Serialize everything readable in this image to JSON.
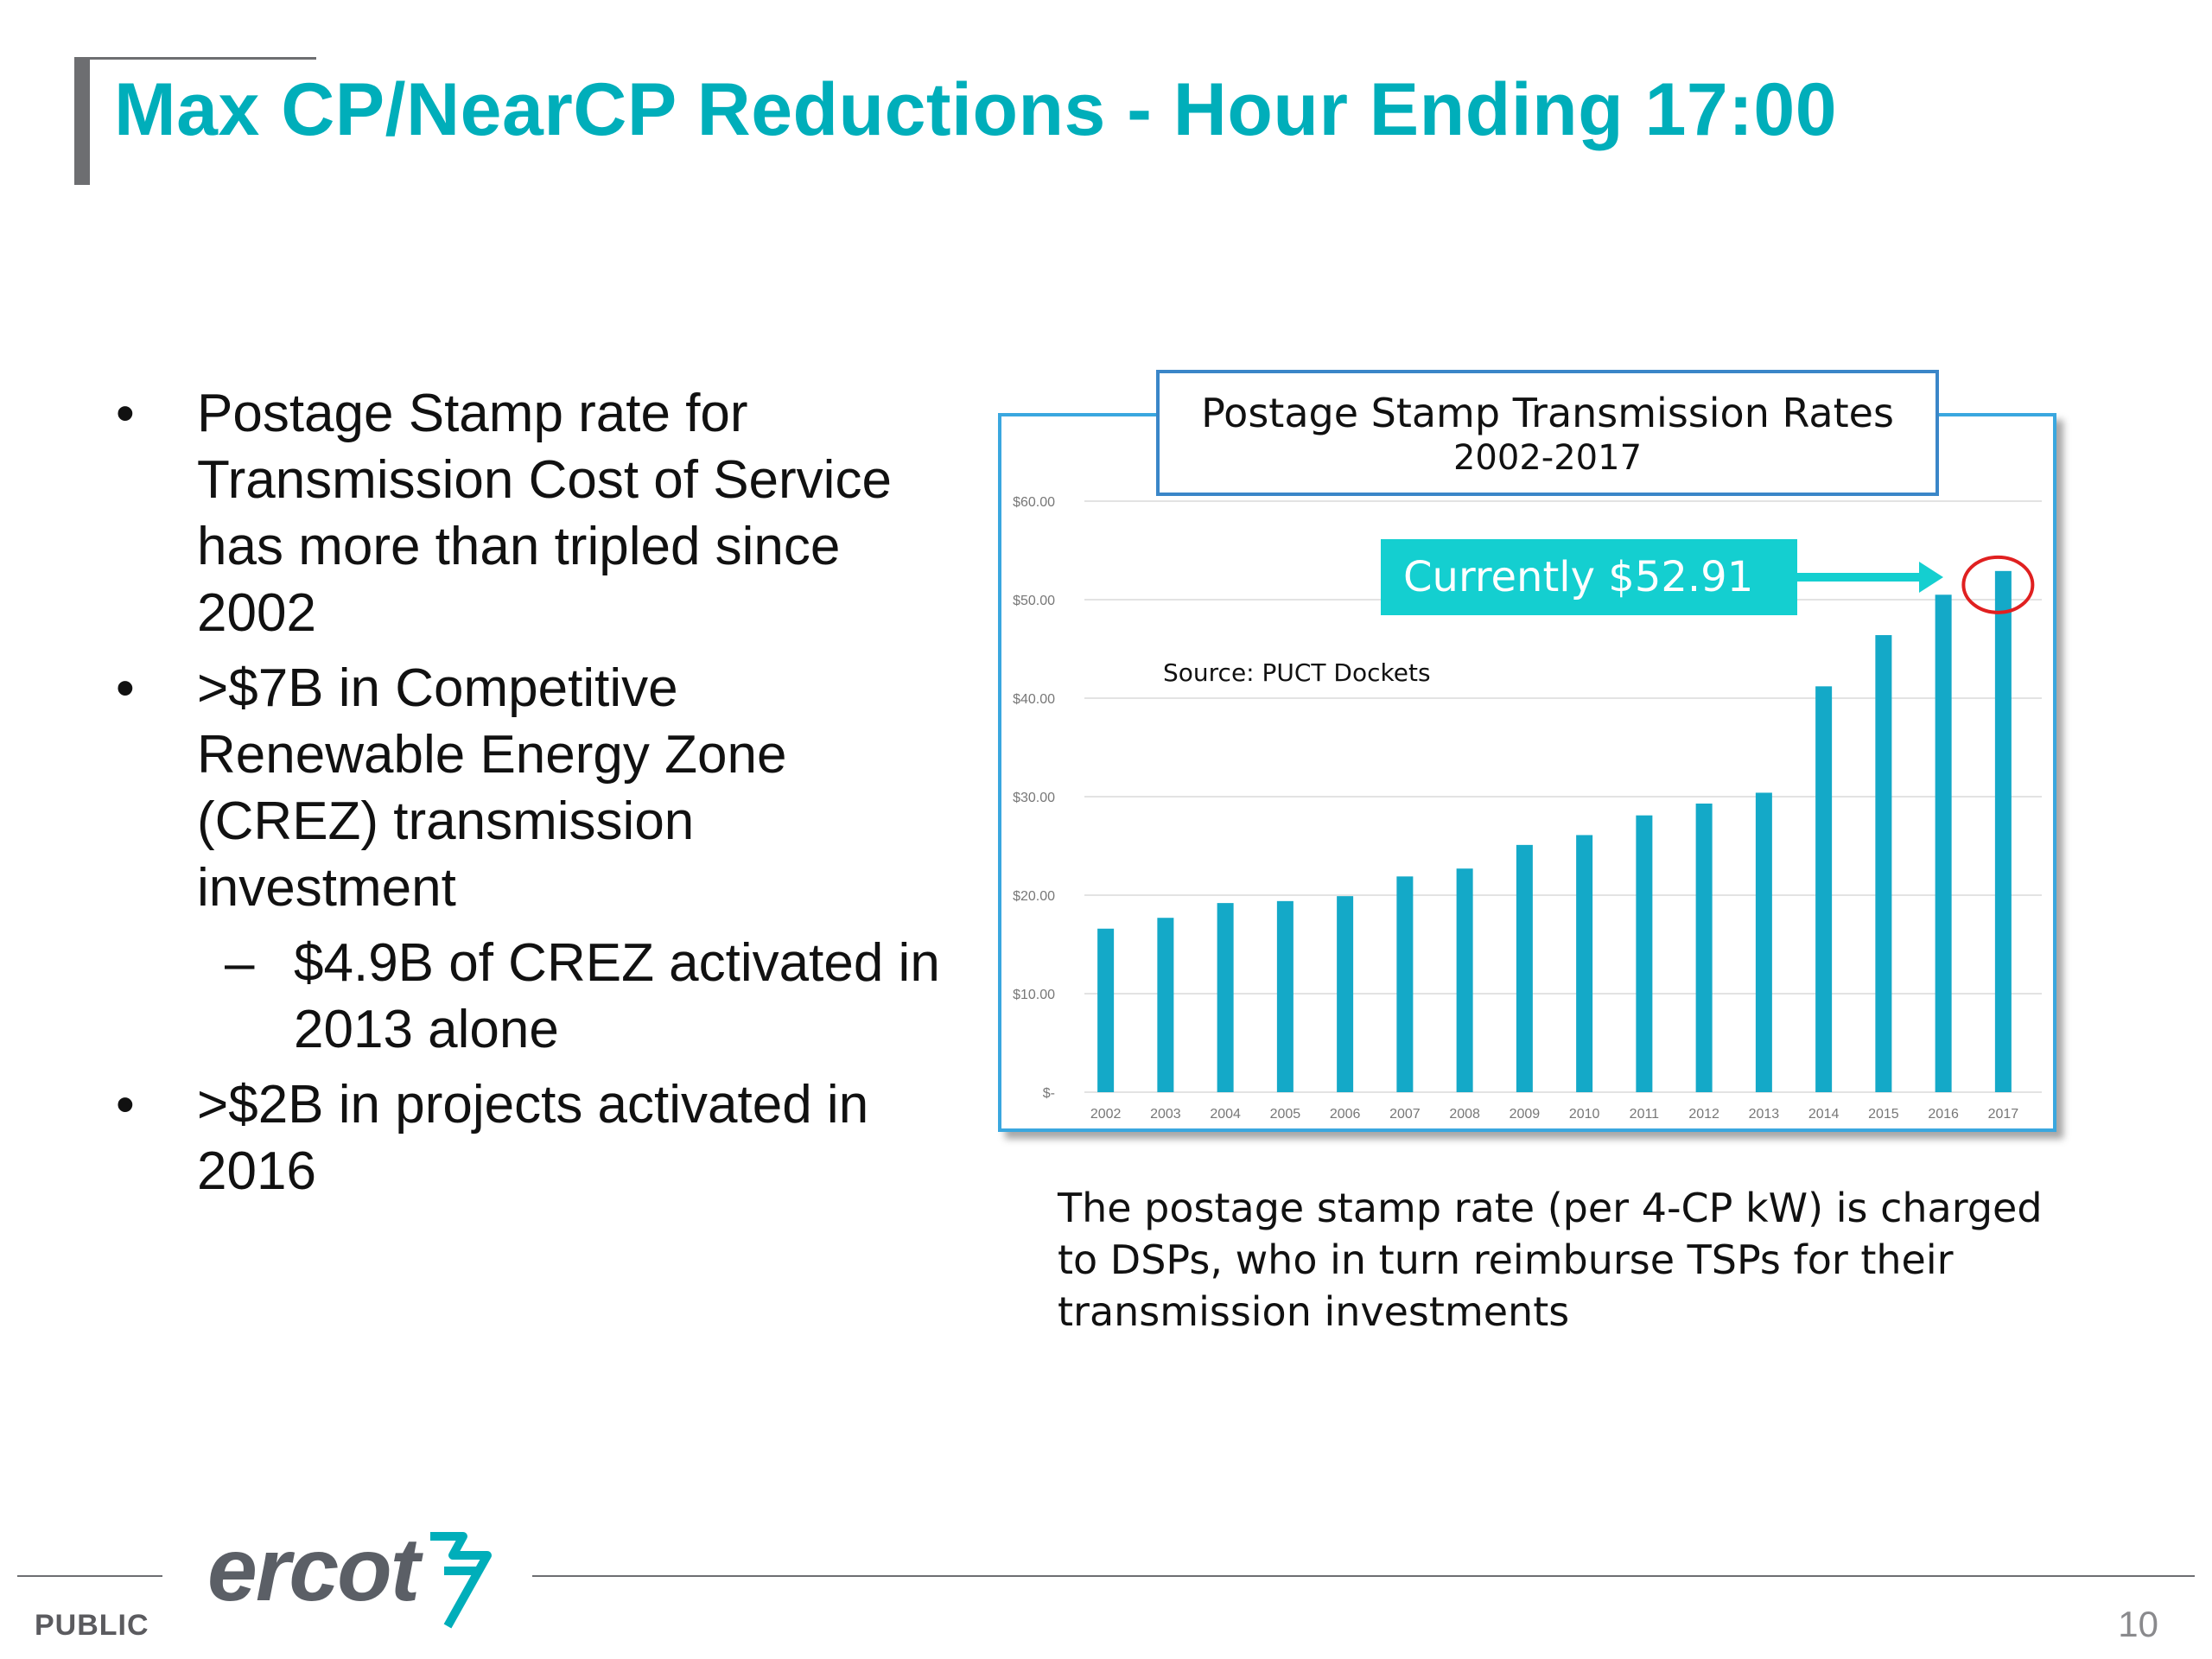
{
  "slide": {
    "title": "Max CP/NearCP Reductions - Hour Ending 17:00",
    "footer_label": "PUBLIC",
    "page_number": "10",
    "logo_text": "ercot",
    "accent_color": "#00aeba"
  },
  "bullets": [
    {
      "level": 1,
      "text": "Postage Stamp rate for Transmission Cost of Service has more than tripled since 2002"
    },
    {
      "level": 1,
      "text": ">$7B in Competitive Renewable Energy Zone (CREZ) transmission investment"
    },
    {
      "level": 2,
      "text": "$4.9B of CREZ activated in 2013 alone"
    },
    {
      "level": 1,
      "text": ">$2B in projects activated in 2016"
    }
  ],
  "chart": {
    "title": "Postage Stamp Transmission Rates",
    "subtitle": "2002-2017",
    "callout": "Currently $52.91",
    "source": "Source:  PUCT Dockets"
  },
  "caption": "The postage stamp rate (per 4-CP kW) is charged to DSPs, who in turn reimburse TSPs for their transmission investments",
  "chart_data": {
    "type": "bar",
    "title": "Postage Stamp Transmission Rates",
    "subtitle": "2002-2017",
    "categories": [
      "2002",
      "2003",
      "2004",
      "2005",
      "2006",
      "2007",
      "2008",
      "2009",
      "2010",
      "2011",
      "2012",
      "2013",
      "2014",
      "2015",
      "2016",
      "2017"
    ],
    "values": [
      16.6,
      17.7,
      19.2,
      19.4,
      19.9,
      21.9,
      22.7,
      25.1,
      26.1,
      28.1,
      29.3,
      30.4,
      41.2,
      46.4,
      50.5,
      52.91
    ],
    "yticks": [
      "$-",
      "$10.00",
      "$20.00",
      "$30.00",
      "$40.00",
      "$50.00",
      "$60.00"
    ],
    "ylim": [
      0,
      60
    ],
    "grid": true,
    "bar_color": "#14a9c8",
    "highlight_color": "#e02020"
  }
}
